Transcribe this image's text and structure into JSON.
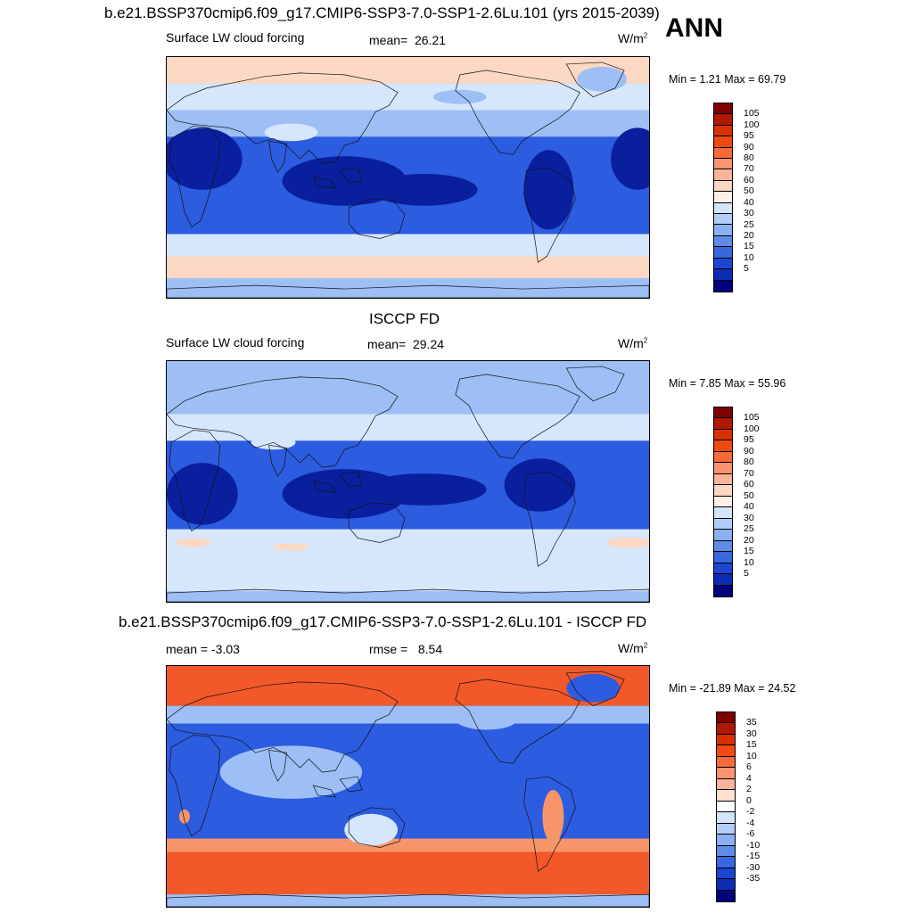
{
  "header": {
    "title": "b.e21.BSSP370cmip6.f09_g17.CMIP6-SSP3-7.0-SSP1-2.6Lu.101 (yrs 2015-2039)",
    "season": "ANN"
  },
  "panels": [
    {
      "id": "model",
      "title": "",
      "variable": "Surface LW cloud forcing",
      "stat_label": "mean=",
      "stat_value": "26.21",
      "units_base": "W/m",
      "units_exp": "2",
      "range_text": "Min =   1.21 Max =  69.79",
      "map": "model",
      "colorbar": "abs"
    },
    {
      "id": "obs",
      "title": "ISCCP FD",
      "variable": "Surface LW cloud forcing",
      "stat_label": "mean=",
      "stat_value": "29.24",
      "units_base": "W/m",
      "units_exp": "2",
      "range_text": "Min =   7.85 Max =  55.96",
      "map": "obs",
      "colorbar": "abs"
    },
    {
      "id": "diff",
      "title": "b.e21.BSSP370cmip6.f09_g17.CMIP6-SSP3-7.0-SSP1-2.6Lu.101 - ISCCP FD",
      "variable": "mean =  -3.03",
      "stat_label": "rmse =",
      "stat_value": "8.54",
      "units_base": "W/m",
      "units_exp": "2",
      "range_text": "Min = -21.89 Max =  24.52",
      "map": "diff",
      "colorbar": "diff"
    }
  ],
  "colorbars": {
    "abs": {
      "labels": [
        "105",
        "100",
        "95",
        "90",
        "80",
        "70",
        "60",
        "50",
        "40",
        "30",
        "25",
        "20",
        "15",
        "10",
        "5"
      ],
      "colors": [
        "#800000",
        "#b01800",
        "#d93000",
        "#f04a10",
        "#f76b3a",
        "#f99370",
        "#fbb49a",
        "#fcd7c2",
        "#fdf0e6",
        "#d4e5fb",
        "#b2cdf7",
        "#8ab0f2",
        "#5e8de9",
        "#3768de",
        "#1b46d3",
        "#0c2cb4",
        "#00007f"
      ]
    },
    "diff": {
      "labels": [
        "35",
        "30",
        "15",
        "10",
        "6",
        "4",
        "2",
        "0",
        "-2",
        "-4",
        "-6",
        "-10",
        "-15",
        "-30",
        "-35"
      ],
      "colors": [
        "#800000",
        "#b01800",
        "#d93000",
        "#f04a10",
        "#f76b3a",
        "#f99370",
        "#fbb49a",
        "#fde0d0",
        "#ffffff",
        "#d4e5fb",
        "#b2cdf7",
        "#8ab0f2",
        "#5e8de9",
        "#3768de",
        "#1b46d3",
        "#0c2cb4",
        "#00007f"
      ]
    }
  },
  "colors": {
    "deep_blue": "#0a1f9e",
    "mid_blue": "#2c5ce0",
    "light_blue": "#9dbff5",
    "pale_blue": "#d6e6fb",
    "peach": "#fcd9c4",
    "salmon": "#f7956a",
    "orange_red": "#f2582a",
    "coast": "#111111"
  }
}
